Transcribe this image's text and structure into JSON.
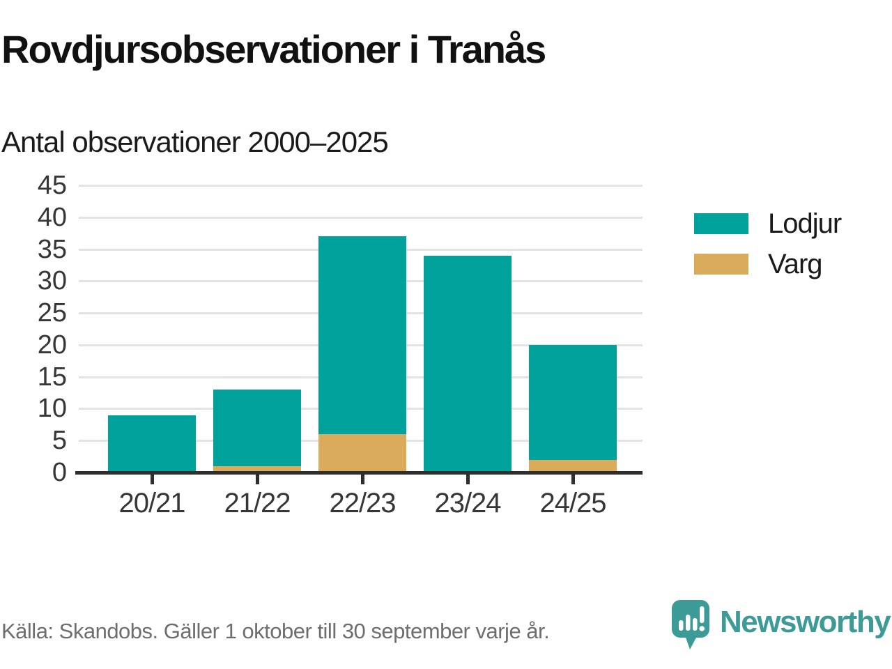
{
  "header": {
    "title": "Rovdjursobservationer i Tranås",
    "subtitle": "Antal observationer 2000–2025"
  },
  "chart_data": {
    "type": "bar",
    "stacked": true,
    "title": "Rovdjursobservationer i Tranås",
    "subtitle": "Antal observationer 2000–2025",
    "categories": [
      "20/21",
      "21/22",
      "22/23",
      "23/24",
      "24/25"
    ],
    "series": [
      {
        "name": "Varg",
        "color": "#d9ab5a",
        "values": [
          0,
          1,
          6,
          0,
          2
        ]
      },
      {
        "name": "Lodjur",
        "color": "#00a29b",
        "values": [
          9,
          12,
          31,
          34,
          18
        ]
      }
    ],
    "totals": [
      9,
      13,
      37,
      34,
      20
    ],
    "xlabel": "",
    "ylabel": "",
    "y_ticks": [
      0,
      5,
      10,
      15,
      20,
      25,
      30,
      35,
      40,
      45
    ],
    "ylim": [
      0,
      45
    ],
    "grid": true,
    "legend_position": "right",
    "legend": [
      {
        "label": "Lodjur",
        "color": "#00a29b"
      },
      {
        "label": "Varg",
        "color": "#d9ab5a"
      }
    ]
  },
  "footer": {
    "source": "Källa: Skandobs. Gäller 1 oktober till 30 september varje år.",
    "brand": "Newsworthy",
    "brand_icon": "newsworthy-bubble-bar-chart-icon"
  },
  "colors": {
    "lodjur": "#00a29b",
    "varg": "#d9ab5a",
    "brand_teal": "#3d9b97",
    "axis": "#2e2e2e",
    "gridline": "#e3e3e3",
    "text_dark": "#111111",
    "text_axis": "#363636",
    "text_muted": "#6e6e6e"
  }
}
